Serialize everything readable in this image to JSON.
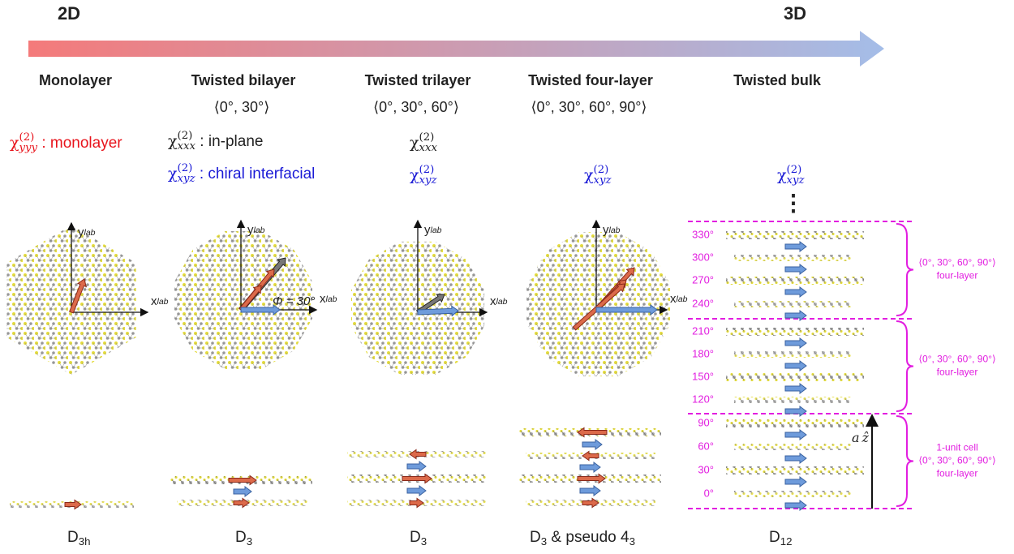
{
  "scale": {
    "left": "2D",
    "right": "3D"
  },
  "columns": [
    {
      "title": "Monolayer",
      "susceptibilities": [
        {
          "symbol": "χ",
          "superscript": "(2)",
          "subscript": "yyy",
          "text": " : monolayer",
          "color": "#e8141c"
        }
      ],
      "axes": {
        "y": "y",
        "y_sub": "lab",
        "x": "x",
        "x_sub": "lab"
      },
      "symmetry": {
        "main": "D",
        "sub": "3h"
      }
    },
    {
      "title": "Twisted bilayer",
      "angles": "⟨0°, 30°⟩",
      "susceptibilities": [
        {
          "symbol": "χ",
          "superscript": "(2)",
          "subscript": "xxx",
          "text": " : in-plane",
          "color": "#222222"
        },
        {
          "symbol": "χ",
          "superscript": "(2)",
          "subscript": "xyz",
          "text": " : chiral interfacial",
          "color": "#1a1ad6"
        }
      ],
      "axes": {
        "y": "y",
        "y_sub": "lab",
        "x": "x",
        "x_sub": "lab"
      },
      "twist_label": "Φ = 30°",
      "symmetry": {
        "main": "D",
        "sub": "3"
      }
    },
    {
      "title": "Twisted trilayer",
      "angles": "⟨0°, 30°, 60°⟩",
      "susceptibilities": [
        {
          "symbol": "χ",
          "superscript": "(2)",
          "subscript": "xxx",
          "color": "#222222"
        },
        {
          "symbol": "χ",
          "superscript": "(2)",
          "subscript": "xyz",
          "color": "#1a1ad6"
        }
      ],
      "axes": {
        "y": "y",
        "y_sub": "lab",
        "x": "x",
        "x_sub": "lab"
      },
      "symmetry": {
        "main": "D",
        "sub": "3"
      }
    },
    {
      "title": "Twisted four-layer",
      "angles": "⟨0°, 30°, 60°, 90°⟩",
      "susceptibilities": [
        {
          "symbol": "χ",
          "superscript": "(2)",
          "subscript": "xyz",
          "color": "#1a1ad6"
        }
      ],
      "axes": {
        "y": "y",
        "y_sub": "lab",
        "x": "x",
        "x_sub": "lab"
      },
      "symmetry": {
        "main": "D",
        "sub": "3",
        "rest": " & pseudo 4",
        "sub2": "3"
      }
    },
    {
      "title": "Twisted bulk",
      "susceptibilities": [
        {
          "symbol": "χ",
          "superscript": "(2)",
          "subscript": "xyz",
          "color": "#1a1ad6"
        }
      ],
      "ellipsis": "⋮",
      "symmetry": {
        "main": "D",
        "sub": "12"
      }
    }
  ],
  "bulk": {
    "layer_angles": [
      "330°",
      "300°",
      "270°",
      "240°",
      "210°",
      "180°",
      "150°",
      "120°",
      "90°",
      "60°",
      "30°",
      "0°"
    ],
    "groups": [
      {
        "lines": [
          "⟨0°, 30°, 60°, 90°⟩",
          "four-layer"
        ]
      },
      {
        "lines": [
          "⟨0°, 30°, 60°, 90°⟩",
          "four-layer"
        ]
      },
      {
        "lines": [
          "1-unit cell",
          "⟨0°, 30°, 60°, 90°⟩",
          "four-layer"
        ]
      }
    ],
    "vector": {
      "letter": "a",
      "unit": "ẑ"
    }
  }
}
